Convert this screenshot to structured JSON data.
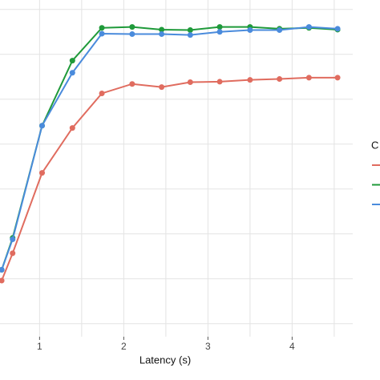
{
  "chart_data": {
    "type": "line",
    "x_label": "Latency (s)",
    "legend_title": "C",
    "xlim": [
      0.53,
      4.72
    ],
    "xticks": [
      1,
      2,
      3,
      4
    ],
    "xgrid": [
      1,
      1.5,
      2,
      2.5,
      3,
      3.5,
      4,
      4.5
    ],
    "ylim": [
      -0.29,
      7.21
    ],
    "ygrid": [
      0,
      1,
      2,
      3,
      4,
      5,
      6,
      7
    ],
    "grid": true,
    "x": [
      0.55,
      0.68,
      1.03,
      1.39,
      1.74,
      2.1,
      2.45,
      2.79,
      3.14,
      3.5,
      3.85,
      4.2,
      4.54
    ],
    "series": [
      {
        "color": "#e06c5f",
        "values": [
          0.96,
          1.57,
          3.36,
          4.36,
          5.13,
          5.34,
          5.27,
          5.38,
          5.39,
          5.43,
          5.45,
          5.48,
          5.48
        ]
      },
      {
        "color": "#1f9a3a",
        "values": [
          1.2,
          1.91,
          4.41,
          5.86,
          6.59,
          6.61,
          6.55,
          6.54,
          6.61,
          6.61,
          6.57,
          6.59,
          6.55
        ]
      },
      {
        "color": "#4a8bdc",
        "values": [
          1.2,
          1.88,
          4.41,
          5.59,
          6.46,
          6.45,
          6.45,
          6.43,
          6.5,
          6.54,
          6.54,
          6.61,
          6.57
        ]
      }
    ]
  }
}
